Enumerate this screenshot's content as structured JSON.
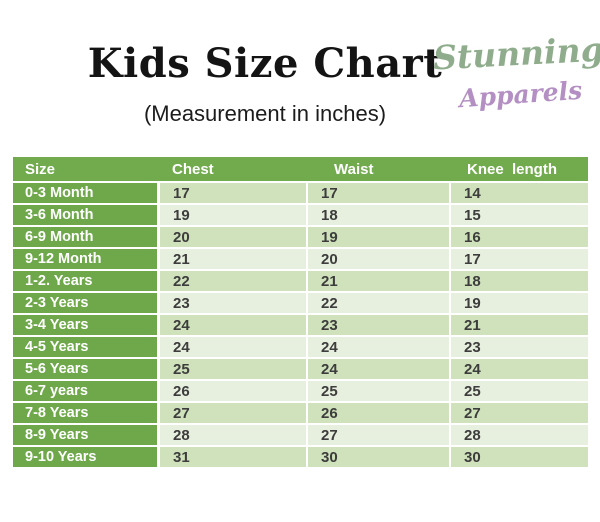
{
  "header": {
    "title": "Kids Size Chart",
    "subtitle": "(Measurement in inches)",
    "logo": {
      "line1": "Stunning",
      "line2": "Apparels"
    }
  },
  "table": {
    "columns": [
      "Size",
      "Chest",
      "Waist",
      "Knee  length"
    ],
    "rows": [
      {
        "size": "0-3 Month",
        "chest": "17",
        "waist": "17",
        "knee": "14"
      },
      {
        "size": "3-6 Month",
        "chest": "19",
        "waist": "18",
        "knee": "15"
      },
      {
        "size": "6-9 Month",
        "chest": "20",
        "waist": "19",
        "knee": "16"
      },
      {
        "size": "9-12 Month",
        "chest": "21",
        "waist": "20",
        "knee": "17"
      },
      {
        "size": "1-2. Years",
        "chest": "22",
        "waist": "21",
        "knee": "18"
      },
      {
        "size": "2-3 Years",
        "chest": "23",
        "waist": "22",
        "knee": "19"
      },
      {
        "size": "3-4 Years",
        "chest": "24",
        "waist": "23",
        "knee": "21"
      },
      {
        "size": "4-5 Years",
        "chest": "24",
        "waist": "24",
        "knee": "23"
      },
      {
        "size": "5-6 Years",
        "chest": "25",
        "waist": "24",
        "knee": "24"
      },
      {
        "size": "6-7 years",
        "chest": "26",
        "waist": "25",
        "knee": "25"
      },
      {
        "size": "7-8 Years",
        "chest": "27",
        "waist": "26",
        "knee": "27"
      },
      {
        "size": "8-9 Years",
        "chest": "28",
        "waist": "27",
        "knee": "28"
      },
      {
        "size": "9-10 Years",
        "chest": "31",
        "waist": "30",
        "knee": "30"
      }
    ]
  },
  "colors": {
    "header_bg": "#72ab4d",
    "size_col_bg": "#6fa84b",
    "row_alt1_bg": "#cfe2bb",
    "row_alt2_bg": "#e7f0de",
    "header_text": "#ffffff",
    "cell_text": "#3d3d3d",
    "logo_green": "#8fad8c",
    "logo_purple": "#b38fc3"
  }
}
